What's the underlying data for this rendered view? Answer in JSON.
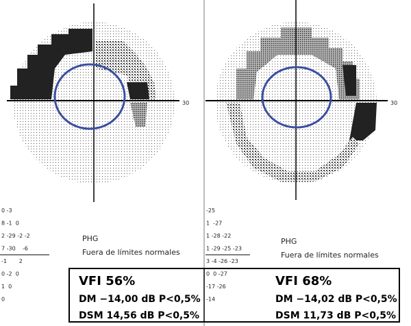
{
  "panels": [
    {
      "scale_label": "30",
      "deviations": [
        "0 -3",
        "8 -1  0",
        "2 -29 -2 -2",
        "7 -30    -6",
        "-1       2",
        "0 -2  0",
        "1  0",
        "0"
      ],
      "legend": [
        "PHG",
        "Fuera de límites normales"
      ],
      "summary": {
        "vfi": "VFI 56%",
        "dm": "DM −14,00 dB P<0,5%",
        "dsm": "DSM 14,56 dB P<0,5%"
      }
    },
    {
      "scale_label": "30",
      "deviations": [
        "-25",
        "1  -27",
        "1 -28 -22",
        "1 -29 -25 -23",
        "3 -4 -26 -23",
        "0  0 -27",
        "-17 -26",
        "-14"
      ],
      "legend": [
        "PHG",
        "Fuera de límites normales"
      ],
      "summary": {
        "vfi": "VFI 68%",
        "dm": "DM −14,02 dB P<0,5%",
        "dsm": "DSM 11,73 dB P<0,5%"
      }
    }
  ]
}
